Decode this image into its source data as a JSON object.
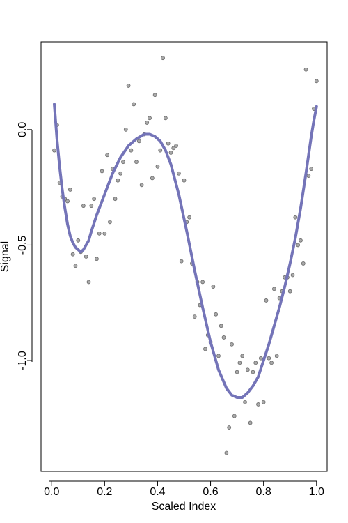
{
  "chart_data": {
    "type": "scatter",
    "xlabel": "Scaled Index",
    "ylabel": "Signal",
    "xlim": [
      -0.04,
      1.04
    ],
    "ylim": [
      -1.48,
      0.38
    ],
    "x_ticks": [
      0.0,
      0.2,
      0.4,
      0.6,
      0.8,
      1.0
    ],
    "x_tick_labels": [
      "0.0",
      "0.2",
      "0.4",
      "0.6",
      "0.8",
      "1.0"
    ],
    "y_ticks": [
      0.0,
      -0.5,
      -1.0
    ],
    "y_tick_labels": [
      "0.0",
      "-0.5",
      "-1.0"
    ],
    "grid": false,
    "series": [
      {
        "kind": "points",
        "color": "#a9a9a9",
        "x": [
          0.01,
          0.02,
          0.03,
          0.04,
          0.05,
          0.06,
          0.07,
          0.08,
          0.09,
          0.1,
          0.11,
          0.12,
          0.13,
          0.14,
          0.15,
          0.16,
          0.17,
          0.18,
          0.19,
          0.2,
          0.21,
          0.22,
          0.23,
          0.24,
          0.25,
          0.26,
          0.27,
          0.28,
          0.29,
          0.3,
          0.31,
          0.32,
          0.33,
          0.34,
          0.35,
          0.36,
          0.37,
          0.38,
          0.39,
          0.4,
          0.41,
          0.42,
          0.43,
          0.44,
          0.45,
          0.46,
          0.47,
          0.48,
          0.49,
          0.5,
          0.51,
          0.52,
          0.53,
          0.54,
          0.55,
          0.56,
          0.57,
          0.58,
          0.59,
          0.6,
          0.61,
          0.62,
          0.63,
          0.64,
          0.65,
          0.66,
          0.67,
          0.68,
          0.69,
          0.7,
          0.71,
          0.72,
          0.73,
          0.74,
          0.75,
          0.76,
          0.77,
          0.78,
          0.79,
          0.8,
          0.81,
          0.82,
          0.83,
          0.84,
          0.85,
          0.86,
          0.87,
          0.88,
          0.89,
          0.9,
          0.91,
          0.92,
          0.93,
          0.94,
          0.95,
          0.96,
          0.97,
          0.98,
          0.99,
          1.0
        ],
        "y": [
          -0.09,
          0.02,
          -0.23,
          -0.29,
          -0.3,
          -0.31,
          -0.26,
          -0.54,
          -0.59,
          -0.48,
          -0.53,
          -0.33,
          -0.55,
          -0.66,
          -0.33,
          -0.3,
          -0.56,
          -0.45,
          -0.18,
          -0.45,
          -0.11,
          -0.4,
          -0.17,
          -0.3,
          -0.22,
          -0.19,
          -0.14,
          0.0,
          0.19,
          -0.09,
          0.11,
          -0.14,
          -0.05,
          -0.24,
          -0.02,
          0.03,
          0.05,
          -0.21,
          0.15,
          -0.16,
          -0.09,
          0.31,
          0.05,
          -0.06,
          -0.1,
          -0.08,
          -0.07,
          -0.19,
          -0.57,
          -0.22,
          -0.4,
          -0.38,
          -0.58,
          -0.81,
          -0.66,
          -0.76,
          -0.66,
          -0.95,
          -0.89,
          -0.92,
          -0.68,
          -0.8,
          -0.98,
          -0.85,
          -0.9,
          -1.4,
          -1.29,
          -0.93,
          -1.24,
          -1.05,
          -1.01,
          -0.98,
          -1.18,
          -1.04,
          -1.27,
          -1.05,
          -1.01,
          -1.19,
          -0.99,
          -1.18,
          -0.74,
          -0.99,
          -1.01,
          -0.69,
          -0.98,
          -0.73,
          -0.7,
          -0.64,
          -0.64,
          -0.7,
          -0.63,
          -0.38,
          -0.5,
          -0.48,
          -0.58,
          0.26,
          -0.2,
          -0.17,
          0.09,
          0.21
        ]
      },
      {
        "kind": "line",
        "color": "#7474b8",
        "x": [
          0.01,
          0.02,
          0.03,
          0.04,
          0.05,
          0.06,
          0.07,
          0.08,
          0.09,
          0.1,
          0.11,
          0.12,
          0.13,
          0.14,
          0.15,
          0.17,
          0.2,
          0.23,
          0.26,
          0.29,
          0.32,
          0.35,
          0.37,
          0.39,
          0.41,
          0.43,
          0.45,
          0.48,
          0.51,
          0.54,
          0.57,
          0.6,
          0.63,
          0.66,
          0.68,
          0.7,
          0.71,
          0.72,
          0.74,
          0.76,
          0.78,
          0.8,
          0.82,
          0.84,
          0.86,
          0.88,
          0.9,
          0.92,
          0.94,
          0.96,
          0.97,
          0.98,
          0.99,
          1.0
        ],
        "y": [
          0.11,
          -0.04,
          -0.16,
          -0.26,
          -0.34,
          -0.41,
          -0.46,
          -0.49,
          -0.51,
          -0.52,
          -0.53,
          -0.52,
          -0.5,
          -0.48,
          -0.44,
          -0.37,
          -0.28,
          -0.19,
          -0.12,
          -0.07,
          -0.04,
          -0.02,
          -0.02,
          -0.03,
          -0.05,
          -0.09,
          -0.15,
          -0.28,
          -0.44,
          -0.61,
          -0.77,
          -0.92,
          -1.04,
          -1.12,
          -1.15,
          -1.16,
          -1.16,
          -1.16,
          -1.14,
          -1.11,
          -1.07,
          -1.0,
          -0.93,
          -0.85,
          -0.77,
          -0.68,
          -0.58,
          -0.47,
          -0.34,
          -0.19,
          -0.11,
          -0.03,
          0.04,
          0.1
        ]
      }
    ]
  }
}
